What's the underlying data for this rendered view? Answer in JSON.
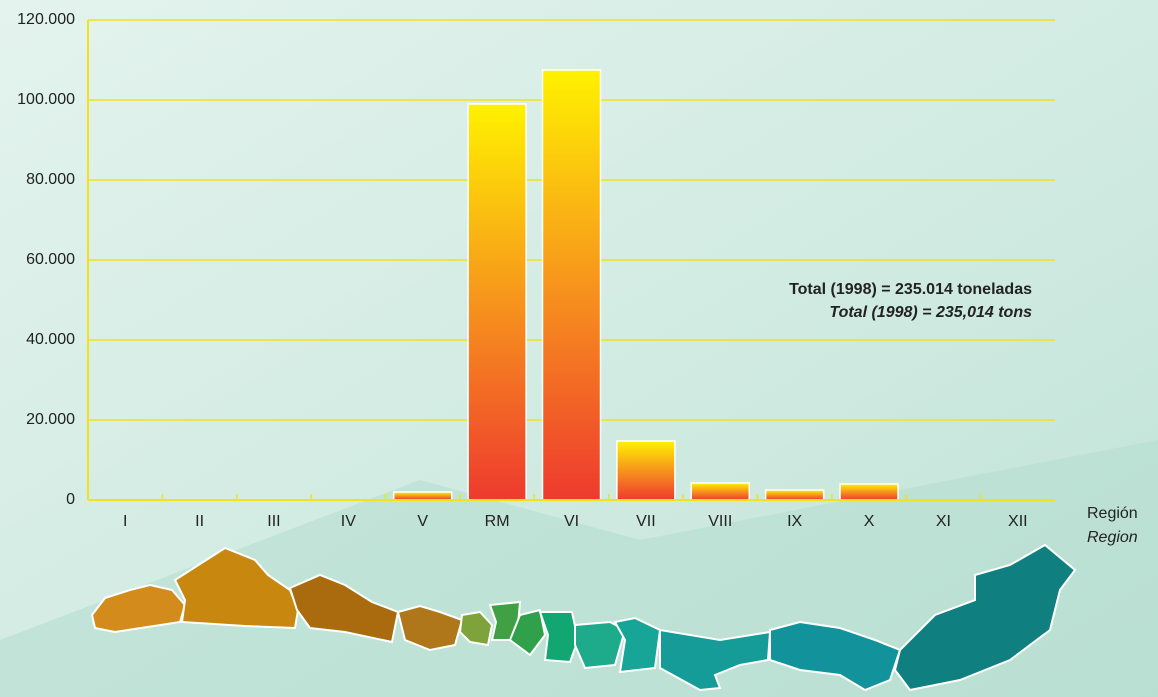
{
  "chart_data": {
    "type": "bar",
    "categories": [
      "I",
      "II",
      "III",
      "IV",
      "V",
      "RM",
      "VI",
      "VII",
      "VIII",
      "IX",
      "X",
      "XI",
      "XII"
    ],
    "values": [
      0,
      0,
      0,
      0,
      2000,
      99000,
      107500,
      14750,
      4250,
      2500,
      4000,
      0,
      0
    ],
    "ylim": [
      0,
      120000
    ],
    "yticks": [
      0,
      {
        "value": 20000,
        "label": "20.000"
      },
      {
        "value": 40000,
        "label": "40.000"
      },
      {
        "value": 60000,
        "label": "60.000"
      },
      {
        "value": 80000,
        "label": "80.000"
      },
      {
        "value": 100000,
        "label": "100.000"
      },
      {
        "value": 120000,
        "label": "120.000"
      }
    ],
    "grid": true,
    "grid_color": "#f2e21a",
    "color_top": "#fff200",
    "color_bottom": "#ee3a2e",
    "x_label": "Región",
    "x_label_en": "Region",
    "annotations": [
      "Total (1998) = 235.014 toneladas",
      "Total (1998) = 235,014 tons"
    ]
  }
}
